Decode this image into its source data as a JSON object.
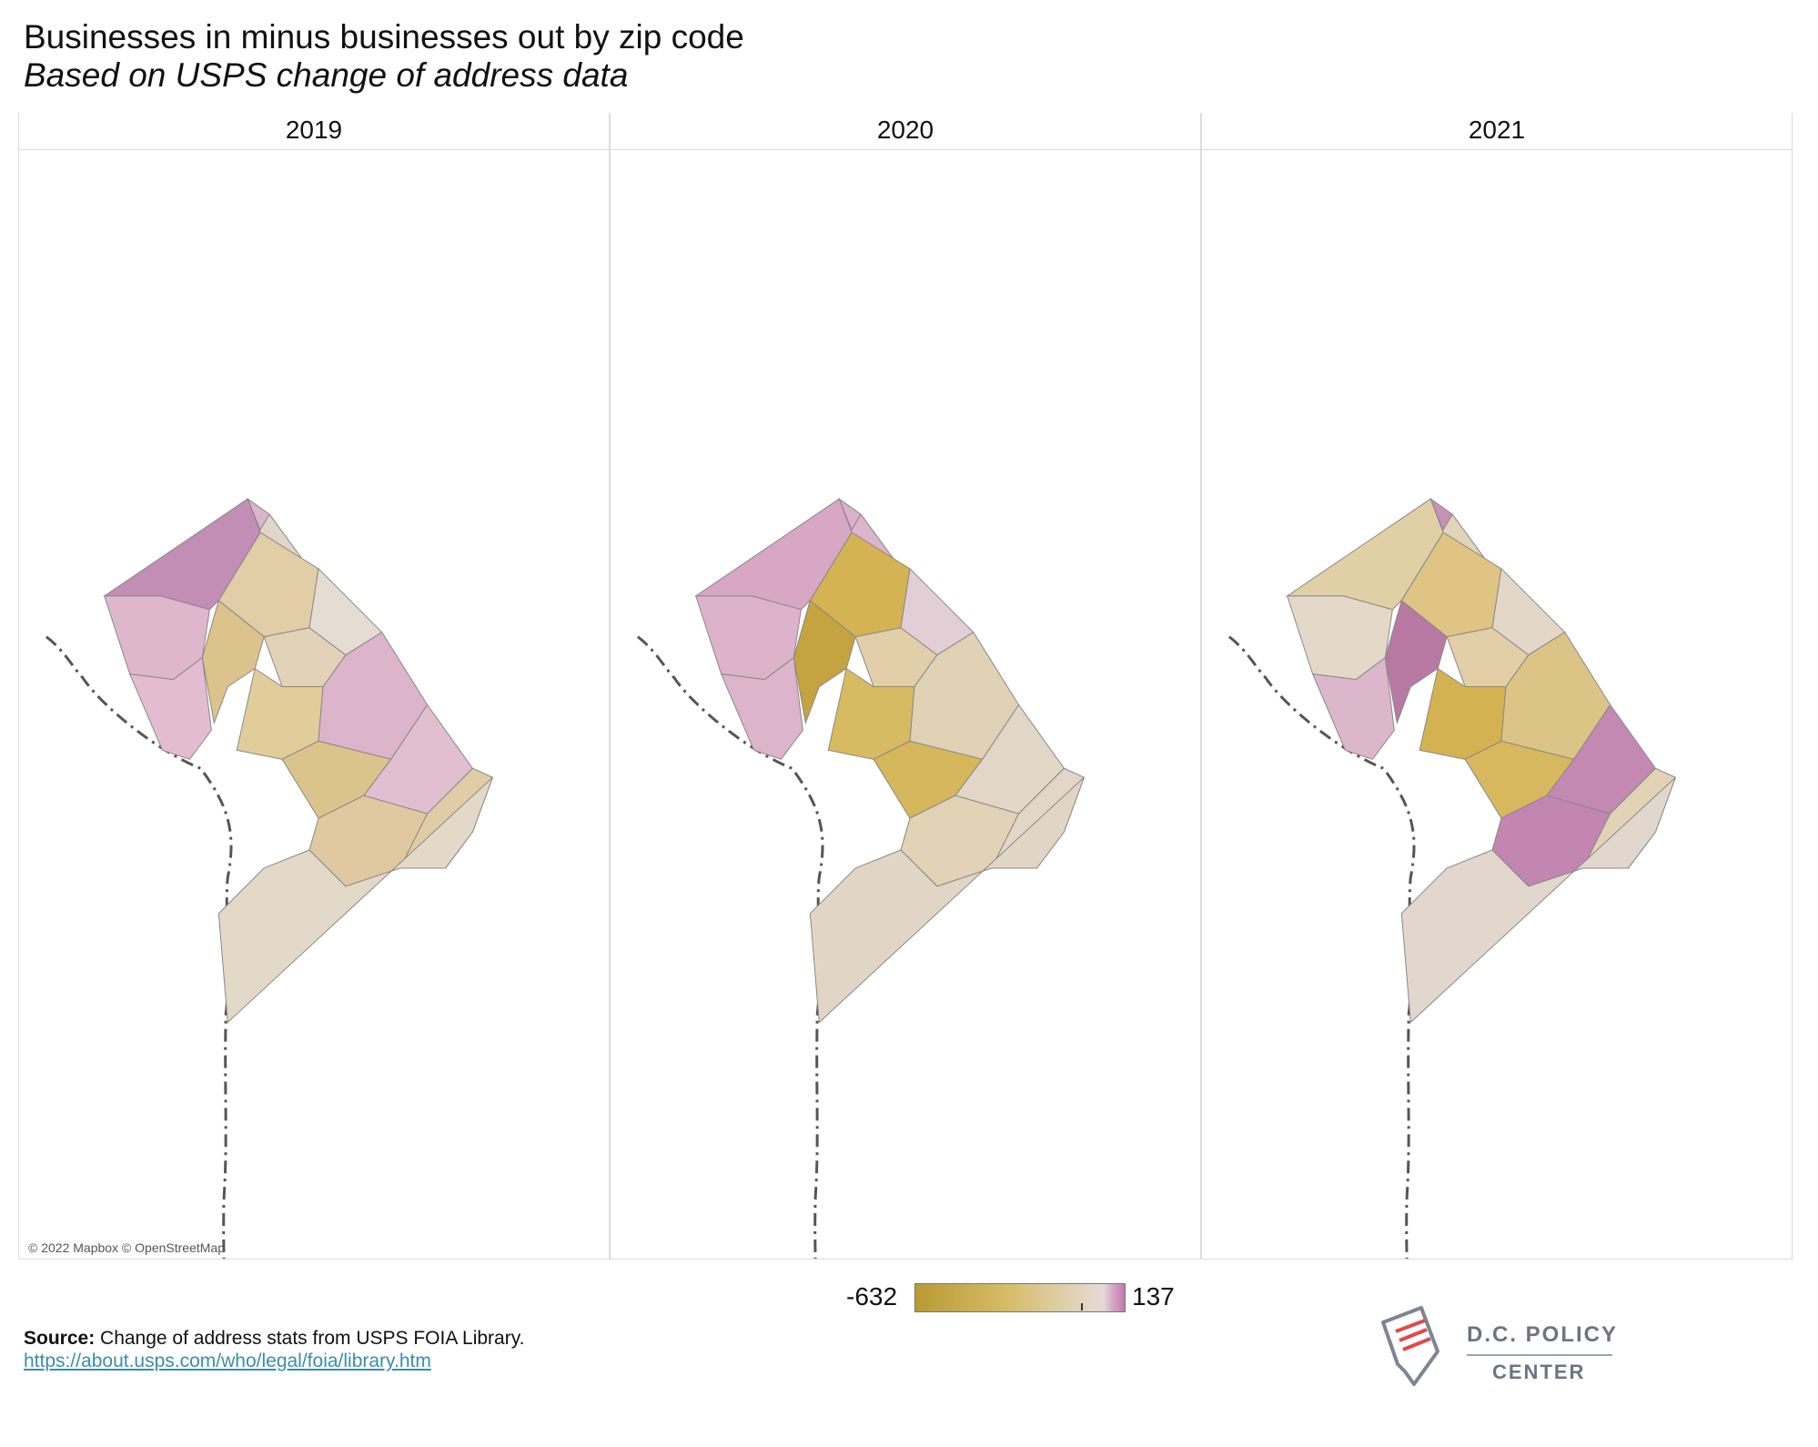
{
  "header": {
    "title": "Businesses in minus businesses out by zip code",
    "subtitle": "Based on USPS change of address data"
  },
  "panels": [
    {
      "year": "2019",
      "fills": [
        "#dcb5cc",
        "#e2d6c8",
        "#c28eb5",
        "#e1cda6",
        "#e2d3b8",
        "#e5ddd2",
        "#dfb7cd",
        "#e3bcd2",
        "#dcc38b",
        "#e0cd9a",
        "#dcb4cb",
        "#dbc48c",
        "#e1bed2",
        "#e0c9a0",
        "#e0cda6",
        "#e3d9c8"
      ]
    },
    {
      "year": "2020",
      "fills": [
        "#dbb0ca",
        "#dcb4cb",
        "#d7a7c4",
        "#d5b354",
        "#e2cfa9",
        "#e2cfd6",
        "#dcb3cb",
        "#dcb4cb",
        "#c5a340",
        "#d7bb63",
        "#e0d2b5",
        "#d6b75c",
        "#e2d7c7",
        "#e2d3b7",
        "#e2d6c8",
        "#e1d6c6"
      ]
    },
    {
      "year": "2021",
      "fills": [
        "#c791b8",
        "#e2d3ba",
        "#e1cfa5",
        "#dfc484",
        "#e2cfa8",
        "#e3d8c8",
        "#e4d9c8",
        "#dcb7cc",
        "#b87aa3",
        "#d4b252",
        "#dcc487",
        "#d7b85e",
        "#c389b2",
        "#c385b1",
        "#e2d3b5",
        "#e1d7cd"
      ]
    }
  ],
  "legend": {
    "min": "-632",
    "max": "137"
  },
  "map_credit": "© 2022 Mapbox © OpenStreetMap",
  "source": {
    "label": "Source:",
    "text": " Change of address stats from USPS FOIA Library.",
    "link": "https://about.usps.com/who/legal/foia/library.htm"
  },
  "logo": {
    "title": "D.C. POLICY",
    "subtitle": "CENTER"
  }
}
